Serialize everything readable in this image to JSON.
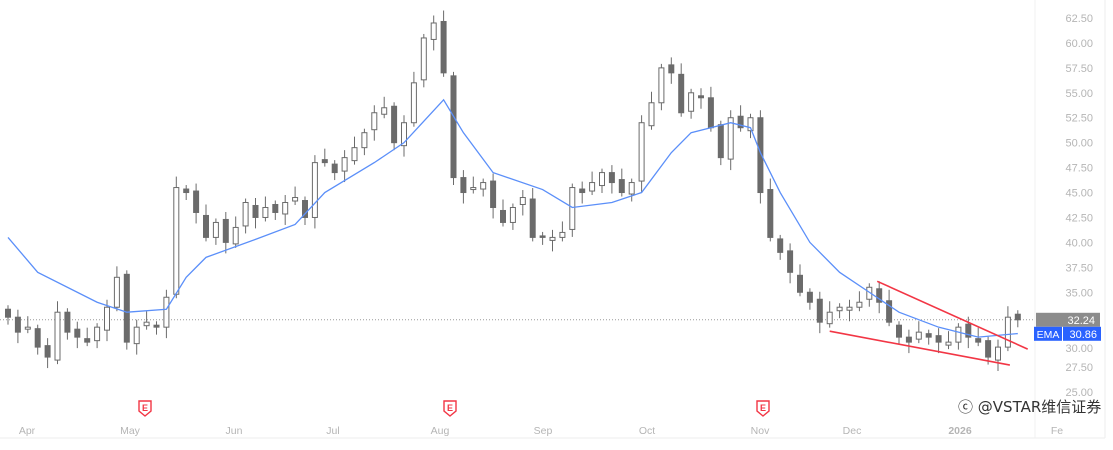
{
  "chart_data": {
    "type": "candlestick",
    "y_axis": {
      "min": 25,
      "max": 62.5,
      "ticks": [
        "62.50",
        "60.00",
        "57.50",
        "55.00",
        "52.50",
        "50.00",
        "47.50",
        "45.00",
        "42.50",
        "40.00",
        "37.50",
        "35.00",
        "30.00",
        "27.50",
        "25.00"
      ],
      "position": "right"
    },
    "x_axis": {
      "labels": [
        "Apr",
        "May",
        "Jun",
        "Jul",
        "Aug",
        "Sep",
        "Oct",
        "Nov",
        "Dec",
        "2026",
        "Fe"
      ]
    },
    "closes": [
      32.5,
      31,
      31.5,
      29.5,
      28.5,
      33,
      31,
      30.5,
      30,
      31.5,
      33.5,
      36.5,
      30,
      31.5,
      32,
      31.5,
      34.5,
      45.5,
      45,
      43,
      40.5,
      42,
      40,
      41.5,
      44,
      42.5,
      43.5,
      43,
      44,
      44.5,
      42.5,
      48,
      48,
      47,
      48.5,
      49.5,
      51,
      53,
      53.5,
      50,
      52,
      56,
      60.5,
      62,
      57,
      46.5,
      45,
      45.5,
      46,
      43.5,
      42,
      43.5,
      44.5,
      40.5,
      40.5,
      40.5,
      41,
      45.5,
      45,
      46,
      47,
      46,
      45,
      46,
      52,
      54,
      57.5,
      57,
      53,
      55,
      54.5,
      51.5,
      48.5,
      52.5,
      51.5,
      52.5,
      45,
      40.5,
      39,
      37,
      35,
      34,
      32,
      33,
      33.5,
      33.5,
      34,
      35.5,
      34,
      32,
      30.5,
      30,
      31,
      30.5,
      30,
      30,
      31.5,
      30.5,
      30,
      28.5,
      29.5,
      32.5,
      32.24
    ],
    "ema": {
      "name": "EMA",
      "color": "#5b8ff9",
      "points": [
        [
          0,
          40.5
        ],
        [
          3,
          37
        ],
        [
          9,
          34
        ],
        [
          12,
          33
        ],
        [
          16,
          33.3
        ],
        [
          18,
          36.5
        ],
        [
          20,
          38.5
        ],
        [
          25,
          40.3
        ],
        [
          29,
          41.8
        ],
        [
          32,
          45
        ],
        [
          37,
          48
        ],
        [
          40,
          50
        ],
        [
          44,
          54.3
        ],
        [
          46,
          51
        ],
        [
          49,
          47
        ],
        [
          54,
          45.3
        ],
        [
          57,
          43.5
        ],
        [
          61,
          44
        ],
        [
          64,
          45
        ],
        [
          67,
          49
        ],
        [
          69,
          51
        ],
        [
          73,
          52
        ],
        [
          75,
          51.5
        ],
        [
          76,
          49
        ],
        [
          78,
          45
        ],
        [
          81,
          40
        ],
        [
          84,
          37
        ],
        [
          87,
          35
        ],
        [
          90,
          33
        ],
        [
          94,
          31.5
        ],
        [
          98,
          30.5
        ],
        [
          102,
          30.86
        ]
      ]
    },
    "last_price": {
      "label": "32.24",
      "value": 32.24,
      "color": "#8c8c8c"
    },
    "ema_label": {
      "name": "EMA",
      "value": "30.86",
      "color": "#2962ff"
    },
    "trendlines": [
      {
        "color": "#f23645",
        "from": [
          87.8,
          36.1
        ],
        "to": [
          103,
          29.3
        ]
      },
      {
        "color": "#f23645",
        "from": [
          83,
          31.1
        ],
        "to": [
          101.2,
          27.7
        ]
      }
    ],
    "earnings_markers": {
      "label": "E",
      "color": "#f23645",
      "month_positions": [
        "May",
        "Aug",
        "Nov"
      ]
    },
    "up_color": "#ffffff",
    "down_color": "#6b6b6b",
    "grid": false
  },
  "watermark": {
    "text": "@VSTAR维信证券"
  }
}
